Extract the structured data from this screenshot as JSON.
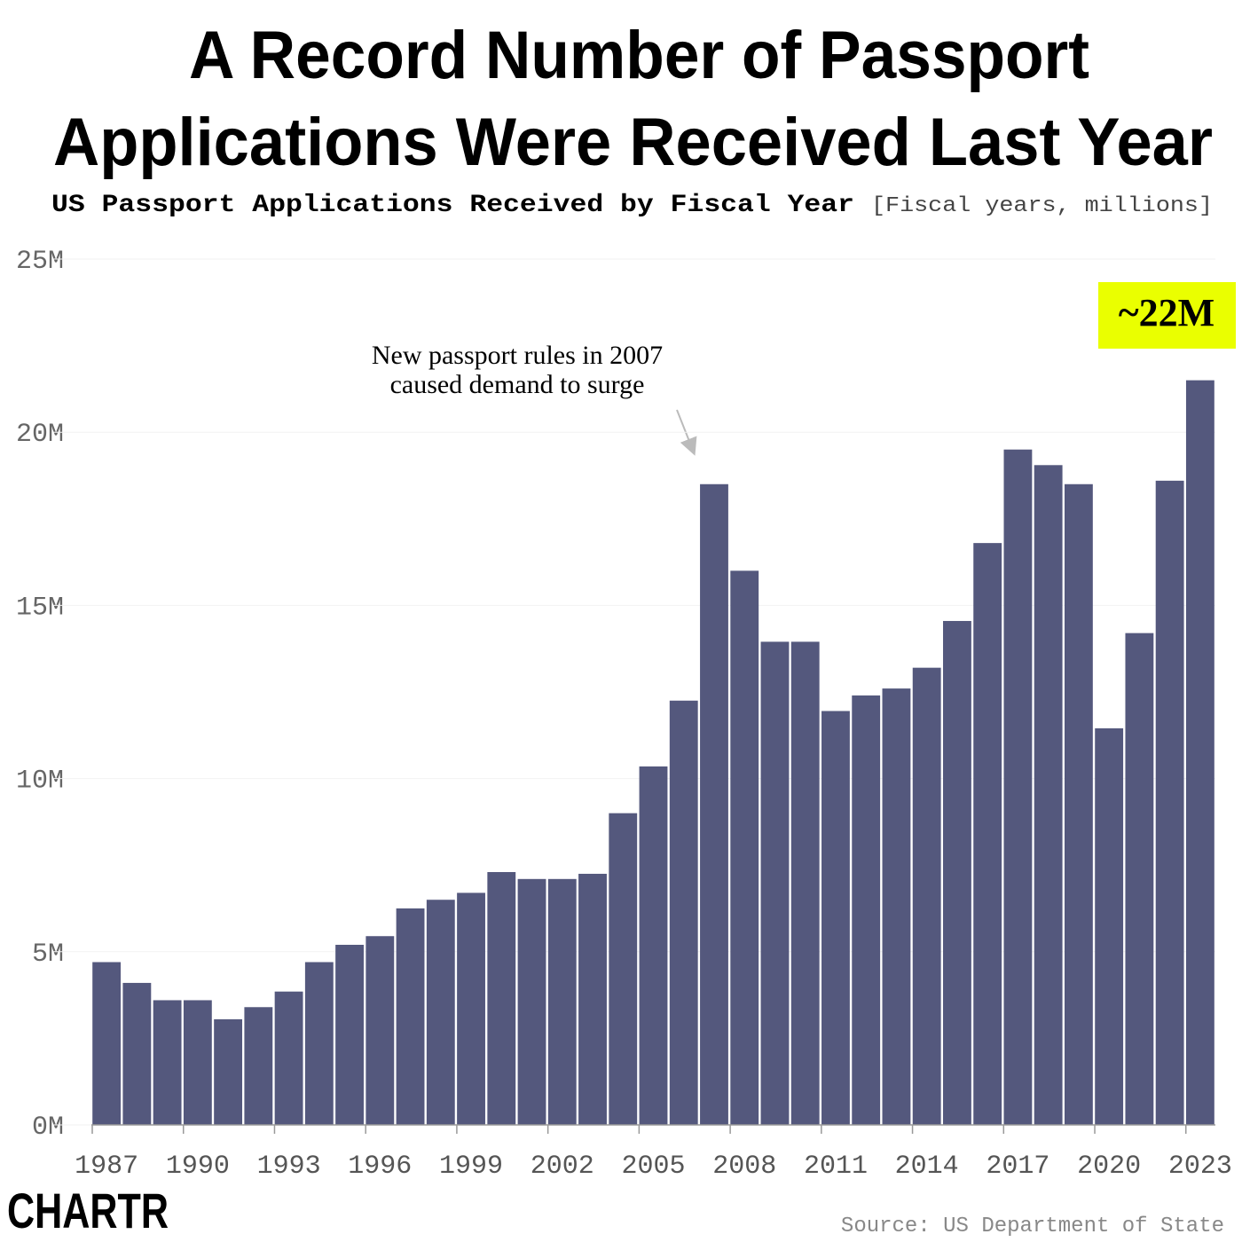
{
  "chart_data": {
    "type": "bar",
    "title": [
      "A Record Number of Passport",
      "Applications Were Received Last Year"
    ],
    "subtitle": "US Passport Applications Received by Fiscal Year",
    "unit_note": "[Fiscal years, millions]",
    "categories": [
      "1987",
      null,
      null,
      "1990",
      null,
      null,
      "1993",
      null,
      null,
      "1996",
      null,
      null,
      "1999",
      null,
      null,
      "2002",
      null,
      null,
      "2005",
      null,
      null,
      "2008",
      null,
      null,
      "2011",
      null,
      null,
      "2014",
      null,
      null,
      "2017",
      null,
      null,
      "2020",
      null,
      null,
      "2023"
    ],
    "values": [
      4.7,
      4.1,
      3.6,
      3.6,
      3.05,
      3.4,
      3.85,
      4.7,
      5.2,
      5.45,
      6.25,
      6.5,
      6.7,
      7.3,
      7.1,
      7.1,
      7.25,
      9.0,
      10.35,
      12.25,
      18.5,
      16.0,
      13.95,
      13.95,
      11.95,
      12.4,
      12.6,
      13.2,
      14.55,
      16.8,
      19.5,
      19.05,
      18.5,
      11.45,
      14.2,
      18.6,
      21.5
    ],
    "color": "#54587d",
    "ylim": [
      0,
      25
    ],
    "yticks": [
      {
        "value": 0,
        "label": "0M"
      },
      {
        "value": 5,
        "label": "5M"
      },
      {
        "value": 10,
        "label": "10M"
      },
      {
        "value": 15,
        "label": "15M"
      },
      {
        "value": 20,
        "label": "20M"
      },
      {
        "value": 25,
        "label": "25M"
      }
    ],
    "grid": true,
    "annotation": [
      "New passport rules in 2007",
      "caused demand to surge"
    ],
    "highlight": "~22M",
    "source": "Source: US Department of State",
    "logo": "CHARTR"
  }
}
